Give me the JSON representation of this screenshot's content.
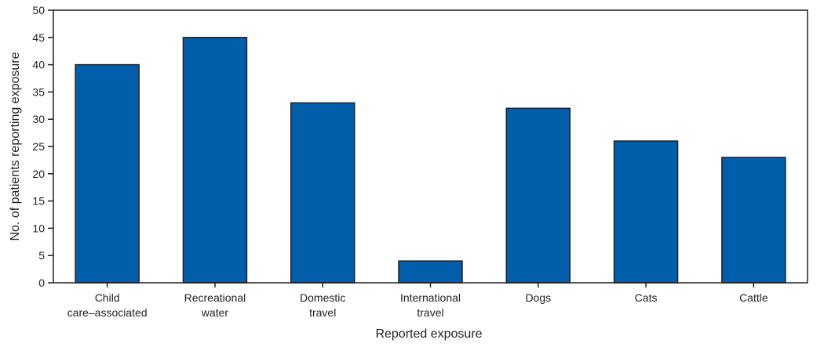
{
  "chart_data": {
    "type": "bar",
    "title": "",
    "xlabel": "Reported exposure",
    "ylabel": "No. of patients reporting exposure",
    "ylim": [
      0,
      50
    ],
    "yticks": [
      0,
      5,
      10,
      15,
      20,
      25,
      30,
      35,
      40,
      45,
      50
    ],
    "categories": [
      [
        "Child",
        "care–associated"
      ],
      [
        "Recreational",
        "water"
      ],
      [
        "Domestic",
        "travel"
      ],
      [
        "International",
        "travel"
      ],
      [
        "Dogs"
      ],
      [
        "Cats"
      ],
      [
        "Cattle"
      ]
    ],
    "values": [
      40,
      45,
      33,
      4,
      32,
      26,
      23
    ],
    "grid": false,
    "colors": {
      "bar_fill": "#005eaa",
      "bar_stroke": "#231f20",
      "axis": "#231f20"
    }
  }
}
